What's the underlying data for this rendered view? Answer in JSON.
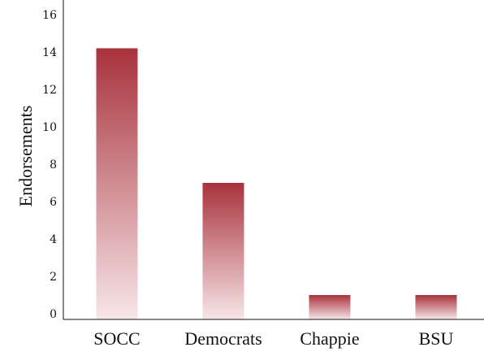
{
  "chart_data": {
    "type": "bar",
    "categories": [
      "SOCC",
      "Democrats",
      "Chappie",
      "BSU"
    ],
    "values": [
      14.2,
      7.0,
      1.0,
      1.0
    ],
    "title": "",
    "xlabel": "",
    "ylabel": "Endorsements",
    "ylim": [
      0,
      17
    ],
    "yticks": [
      0,
      2,
      4,
      6,
      8,
      10,
      12,
      14,
      16
    ],
    "grid": false,
    "legend": "none",
    "bar_color_top": "#a8323c",
    "bar_color_bottom": "#f7e6e8"
  }
}
